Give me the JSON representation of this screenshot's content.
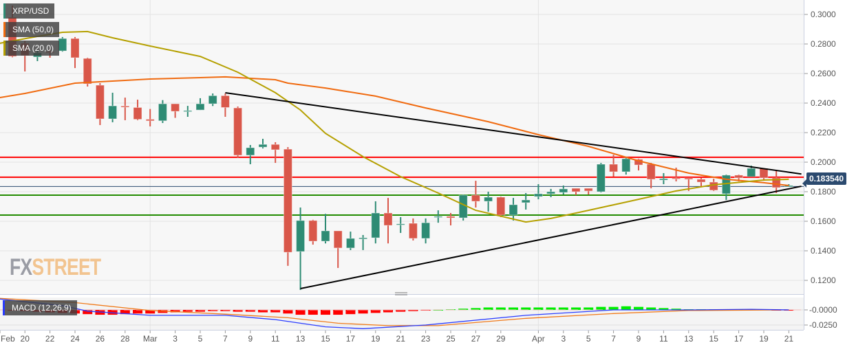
{
  "chart_data": [
    {
      "type": "candlestick",
      "title": "XRP/USD",
      "legend": [
        "XRP/USD",
        "SMA (50,0)",
        "SMA (20,0)"
      ],
      "legend_placement": "top-left",
      "ylim": [
        0.11,
        0.31
      ],
      "yticks": [
        "0.3000",
        "0.2800",
        "0.2600",
        "0.2400",
        "0.2200",
        "0.2000",
        "0.1800",
        "0.1600",
        "0.1400",
        "0.1200"
      ],
      "current_price": "0.183540",
      "grid": true,
      "colors": {
        "up": "#2e8b74",
        "down": "#d9574a",
        "sma50": "#f06a0f",
        "sma20": "#b5a000",
        "resistance": "#ff0000",
        "support": "#228b00",
        "last_price": "#2b4a6f",
        "trendline": "#000000"
      },
      "candles": [
        [
          "Feb 19",
          0.298,
          0.306,
          0.271,
          0.2716
        ],
        [
          "Feb 20",
          0.2805,
          0.282,
          0.2614,
          0.2721
        ],
        [
          "Feb 21",
          0.2712,
          0.2757,
          0.2684,
          0.274
        ],
        [
          "Feb 22",
          0.2748,
          0.2772,
          0.2707,
          0.2744
        ],
        [
          "Feb 23",
          0.2753,
          0.2847,
          0.2748,
          0.2837
        ],
        [
          "Feb 24",
          0.2837,
          0.2847,
          0.2637,
          0.2707
        ],
        [
          "Feb 25",
          0.2702,
          0.2707,
          0.2512,
          0.253
        ],
        [
          "Feb 26",
          0.2521,
          0.2535,
          0.2251,
          0.2293
        ],
        [
          "Feb 27",
          0.2293,
          0.247,
          0.227,
          0.2381
        ],
        [
          "Feb 28",
          0.238,
          0.2437,
          0.2284,
          0.2372
        ],
        [
          "Feb 29",
          0.237,
          0.2423,
          0.2284,
          0.229
        ],
        [
          "Mar 1",
          0.229,
          0.236,
          0.2242,
          0.228
        ],
        [
          "Mar 2",
          0.228,
          0.242,
          0.2265,
          0.2395
        ],
        [
          "Mar 3",
          0.2395,
          0.2395,
          0.23,
          0.2344
        ],
        [
          "Mar 4",
          0.2344,
          0.2381,
          0.2307,
          0.2349
        ],
        [
          "Mar 5",
          0.2353,
          0.2433,
          0.2353,
          0.2395
        ],
        [
          "Mar 6",
          0.2395,
          0.2465,
          0.238,
          0.245
        ],
        [
          "Mar 7",
          0.245,
          0.2465,
          0.2307,
          0.237
        ],
        [
          "Mar 8",
          0.2367,
          0.2377,
          0.2028,
          0.2047
        ],
        [
          "Mar 9",
          0.2047,
          0.2116,
          0.1986,
          0.2098
        ],
        [
          "Mar 10",
          0.2102,
          0.2158,
          0.2093,
          0.212
        ],
        [
          "Mar 11",
          0.212,
          0.2135,
          0.1995,
          0.2084
        ],
        [
          "Mar 12",
          0.2088,
          0.2102,
          0.1298,
          0.139
        ],
        [
          "Mar 13",
          0.1395,
          0.1693,
          0.1135,
          0.1605
        ],
        [
          "Mar 14",
          0.1605,
          0.161,
          0.1442,
          0.1465
        ],
        [
          "Mar 15",
          0.1465,
          0.165,
          0.145,
          0.1535
        ],
        [
          "Mar 16",
          0.1535,
          0.1535,
          0.1284,
          0.1419
        ],
        [
          "Mar 17",
          0.1419,
          0.153,
          0.1405,
          0.1484
        ],
        [
          "Mar 18",
          0.148,
          0.1507,
          0.1405,
          0.1488
        ],
        [
          "Mar 19",
          0.1488,
          0.1735,
          0.145,
          0.1656
        ],
        [
          "Mar 20",
          0.1656,
          0.1758,
          0.145,
          0.1572
        ],
        [
          "Mar 21",
          0.1577,
          0.1628,
          0.1521,
          0.1582
        ],
        [
          "Mar 22",
          0.1586,
          0.1619,
          0.147,
          0.1484
        ],
        [
          "Mar 23",
          0.1484,
          0.1619,
          0.145,
          0.159
        ],
        [
          "Mar 24",
          0.1628,
          0.1674,
          0.159,
          0.1633
        ],
        [
          "Mar 25",
          0.1633,
          0.1656,
          0.1572,
          0.1623
        ],
        [
          "Mar 26",
          0.1623,
          0.1781,
          0.1605,
          0.1777
        ],
        [
          "Mar 27",
          0.1777,
          0.1874,
          0.1693,
          0.1735
        ],
        [
          "Mar 28",
          0.1735,
          0.18,
          0.1665,
          0.1763
        ],
        [
          "Mar 29",
          0.1763,
          0.1767,
          0.1628,
          0.1642
        ],
        [
          "Mar 30",
          0.1642,
          0.1758,
          0.1605,
          0.1712
        ],
        [
          "Mar 31",
          0.1726,
          0.1791,
          0.1679,
          0.1744
        ],
        [
          "Apr 1",
          0.1767,
          0.1851,
          0.1749,
          0.1786
        ],
        [
          "Apr 2",
          0.1786,
          0.1819,
          0.1763,
          0.18
        ],
        [
          "Apr 3",
          0.1795,
          0.1842,
          0.1781,
          0.1819
        ],
        [
          "Apr 4",
          0.1823,
          0.1823,
          0.1777,
          0.18
        ],
        [
          "Apr 5",
          0.1823,
          0.1823,
          0.1781,
          0.1805
        ],
        [
          "Apr 6",
          0.18,
          0.1995,
          0.1795,
          0.1986
        ],
        [
          "Apr 7",
          0.1986,
          0.205,
          0.1902,
          0.1935
        ],
        [
          "Apr 8",
          0.1935,
          0.2033,
          0.1916,
          0.2023
        ],
        [
          "Apr 9",
          0.2019,
          0.2023,
          0.1944,
          0.1981
        ],
        [
          "Apr 10",
          0.1986,
          0.1995,
          0.1823,
          0.1884
        ],
        [
          "Apr 11",
          0.1879,
          0.1926,
          0.1851,
          0.1888
        ],
        [
          "Apr 12",
          0.1893,
          0.1963,
          0.187,
          0.189
        ],
        [
          "Apr 13",
          0.1893,
          0.1893,
          0.1805,
          0.1884
        ],
        [
          "Apr 14",
          0.1884,
          0.1893,
          0.1837,
          0.1865
        ],
        [
          "Apr 15",
          0.1865,
          0.1888,
          0.1805,
          0.181
        ],
        [
          "Apr 16",
          0.1786,
          0.1916,
          0.1744,
          0.1912
        ],
        [
          "Apr 17",
          0.1912,
          0.1916,
          0.187,
          0.1893
        ],
        [
          "Apr 18",
          0.1902,
          0.1977,
          0.1902,
          0.1958
        ],
        [
          "Apr 19",
          0.1958,
          0.1958,
          0.1874,
          0.1893
        ],
        [
          "Apr 20",
          0.1893,
          0.1944,
          0.1791,
          0.1828
        ],
        [
          "Apr 21",
          0.1833,
          0.1851,
          0.1833,
          0.1842
        ]
      ],
      "candle_fields": [
        "date",
        "open",
        "high",
        "low",
        "close"
      ],
      "sma50": [
        [
          "Feb 18",
          0.2437
        ],
        [
          "Feb 20",
          0.2465
        ],
        [
          "Feb 24",
          0.2535
        ],
        [
          "Mar 1",
          0.2563
        ],
        [
          "Mar 5",
          0.2572
        ],
        [
          "Mar 7",
          0.2577
        ],
        [
          "Mar 11",
          0.2558
        ],
        [
          "Mar 12",
          0.2535
        ],
        [
          "Mar 15",
          0.2502
        ],
        [
          "Mar 19",
          0.2447
        ],
        [
          "Mar 23",
          0.2367
        ],
        [
          "Mar 28",
          0.2274
        ],
        [
          "Apr 1",
          0.2186
        ],
        [
          "Apr 5",
          0.2107
        ],
        [
          "Apr 9",
          0.2009
        ],
        [
          "Apr 13",
          0.1926
        ],
        [
          "Apr 16",
          0.1884
        ],
        [
          "Apr 19",
          0.1861
        ],
        [
          "Apr 21",
          0.1842
        ]
      ],
      "sma20": [
        [
          "Feb 18",
          0.2805
        ],
        [
          "Feb 21",
          0.2851
        ],
        [
          "Feb 23",
          0.2879
        ],
        [
          "Feb 25",
          0.2884
        ],
        [
          "Feb 27",
          0.2842
        ],
        [
          "Mar 1",
          0.2786
        ],
        [
          "Mar 5",
          0.2716
        ],
        [
          "Mar 8",
          0.2609
        ],
        [
          "Mar 11",
          0.247
        ],
        [
          "Mar 13",
          0.2353
        ],
        [
          "Mar 15",
          0.2195
        ],
        [
          "Mar 18",
          0.2037
        ],
        [
          "Mar 21",
          0.1902
        ],
        [
          "Mar 24",
          0.1791
        ],
        [
          "Mar 27",
          0.1674
        ],
        [
          "Mar 31",
          0.1595
        ],
        [
          "Apr 2",
          0.1619
        ],
        [
          "Apr 5",
          0.1674
        ],
        [
          "Apr 8",
          0.173
        ],
        [
          "Apr 12",
          0.1805
        ],
        [
          "Apr 15",
          0.1847
        ],
        [
          "Apr 19",
          0.1879
        ],
        [
          "Apr 21",
          0.1884
        ]
      ],
      "horizontal_levels": [
        {
          "kind": "resistance",
          "value": 0.2033
        },
        {
          "kind": "resistance",
          "value": 0.1898
        },
        {
          "kind": "last_price",
          "value": 0.18354
        },
        {
          "kind": "support",
          "value": 0.1777
        },
        {
          "kind": "support",
          "value": 0.1642
        }
      ],
      "trendlines": [
        {
          "from": [
            "Mar 7",
            0.247
          ],
          "to": [
            "Apr 22",
            0.192
          ]
        },
        {
          "from": [
            "Mar 13",
            0.1144
          ],
          "to": [
            "Apr 22",
            0.1837
          ]
        }
      ],
      "xticks": [
        [
          "Feb 18",
          "Feb"
        ],
        [
          "Feb 20",
          "20"
        ],
        [
          "Feb 22",
          "22"
        ],
        [
          "Feb 24",
          "24"
        ],
        [
          "Feb 26",
          "26"
        ],
        [
          "Feb 28",
          "28"
        ],
        [
          "Mar 1",
          "Mar"
        ],
        [
          "Mar 3",
          "3"
        ],
        [
          "Mar 5",
          "5"
        ],
        [
          "Mar 7",
          "7"
        ],
        [
          "Mar 9",
          "9"
        ],
        [
          "Mar 11",
          "11"
        ],
        [
          "Mar 13",
          "13"
        ],
        [
          "Mar 15",
          "15"
        ],
        [
          "Mar 17",
          "17"
        ],
        [
          "Mar 19",
          "19"
        ],
        [
          "Mar 21",
          "21"
        ],
        [
          "Mar 23",
          "23"
        ],
        [
          "Mar 25",
          "25"
        ],
        [
          "Mar 27",
          "27"
        ],
        [
          "Mar 29",
          "29"
        ],
        [
          "Apr 1",
          "Apr"
        ],
        [
          "Apr 3",
          "3"
        ],
        [
          "Apr 5",
          "5"
        ],
        [
          "Apr 7",
          "7"
        ],
        [
          "Apr 9",
          "9"
        ],
        [
          "Apr 11",
          "11"
        ],
        [
          "Apr 13",
          "13"
        ],
        [
          "Apr 15",
          "15"
        ],
        [
          "Apr 17",
          "17"
        ],
        [
          "Apr 19",
          "19"
        ],
        [
          "Apr 21",
          "21"
        ]
      ]
    },
    {
      "type": "macd",
      "title": "MACD (12,26,9)",
      "yticks": [
        "-0.0000",
        "-0.0250"
      ],
      "colors": {
        "macd": "#2a3cff",
        "signal": "#f07a1a",
        "hist_neg": "#ff0000",
        "hist_pos": "#00ee00"
      },
      "macd": [
        [
          "Feb 18",
          0.018
        ],
        [
          "Feb 23",
          0.007
        ],
        [
          "Feb 25",
          -0.002
        ],
        [
          "Mar 1",
          -0.009
        ],
        [
          "Mar 7",
          -0.009
        ],
        [
          "Mar 11",
          -0.016
        ],
        [
          "Mar 15",
          -0.028
        ],
        [
          "Mar 18",
          -0.031
        ],
        [
          "Mar 23",
          -0.025
        ],
        [
          "Mar 31",
          -0.009
        ],
        [
          "Apr 7",
          0.0
        ],
        [
          "Apr 13",
          0.0
        ],
        [
          "Apr 18",
          0.001
        ],
        [
          "Apr 21",
          0.0
        ]
      ],
      "signal": [
        [
          "Feb 18",
          0.019
        ],
        [
          "Feb 24",
          0.012
        ],
        [
          "Mar 1",
          -0.001
        ],
        [
          "Mar 7",
          -0.007
        ],
        [
          "Mar 12",
          -0.013
        ],
        [
          "Mar 16",
          -0.022
        ],
        [
          "Mar 20",
          -0.026
        ],
        [
          "Mar 24",
          -0.026
        ],
        [
          "Mar 31",
          -0.014
        ],
        [
          "Apr 7",
          -0.006
        ],
        [
          "Apr 13",
          -0.001
        ],
        [
          "Apr 21",
          0.0
        ]
      ],
      "histogram": [
        -0.001,
        -0.002,
        -0.003,
        -0.004,
        -0.005,
        -0.006,
        -0.007,
        -0.008,
        -0.008,
        -0.007,
        -0.006,
        -0.006,
        -0.005,
        -0.004,
        -0.003,
        -0.003,
        -0.002,
        -0.002,
        -0.003,
        -0.003,
        -0.004,
        -0.004,
        -0.006,
        -0.008,
        -0.008,
        -0.008,
        -0.008,
        -0.007,
        -0.006,
        -0.005,
        -0.004,
        -0.003,
        -0.002,
        -0.001,
        0.0,
        0.001,
        0.002,
        0.003,
        0.004,
        0.004,
        0.004,
        0.004,
        0.004,
        0.004,
        0.004,
        0.004,
        0.004,
        0.005,
        0.005,
        0.006,
        0.005,
        0.004,
        0.003,
        0.002,
        0.001,
        0.001,
        0.001,
        0.001,
        0.001,
        0.001,
        0.001,
        -0.001,
        -0.001
      ]
    }
  ],
  "logo": {
    "part1": "FX",
    "part2": "STREET"
  }
}
